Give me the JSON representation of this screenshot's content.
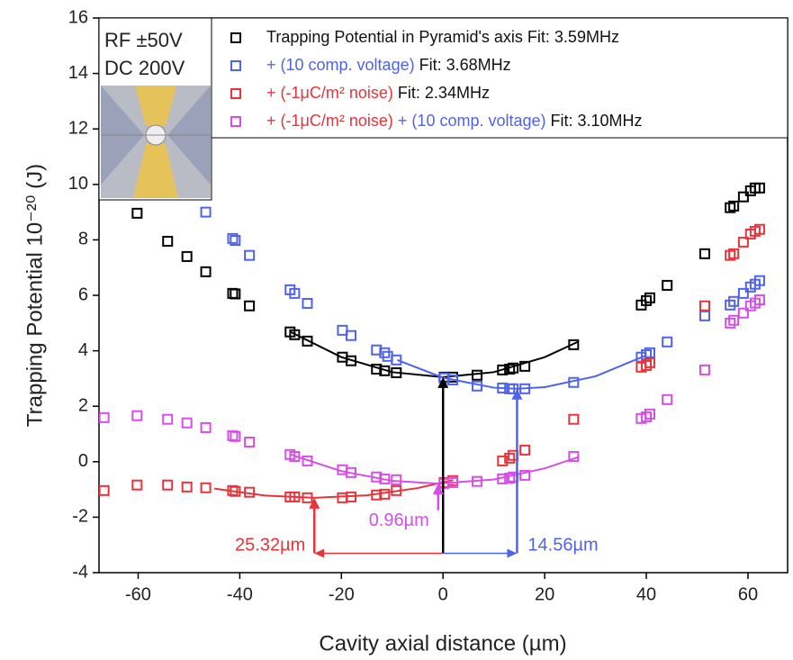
{
  "chart_data": {
    "type": "scatter",
    "xlabel": "Cavity axial distance (µm)",
    "ylabel": "Trapping Potential 10⁻²⁰ (J)",
    "xlim": [
      -67.7,
      67.8
    ],
    "ylim": [
      -4,
      16
    ],
    "xticks": [
      -60,
      -40,
      -20,
      0,
      20,
      40,
      60
    ],
    "yticks": [
      -4,
      -2,
      0,
      2,
      4,
      6,
      8,
      10,
      12,
      14,
      16
    ],
    "inset_text": [
      "RF ±50V",
      "DC 200V"
    ],
    "series": [
      {
        "legend_label": [
          {
            "text": "Trapping Potential in Pyramid's axis",
            "color": "#111111"
          },
          {
            "text": "Fit: 3.59MHz",
            "color": "#111111"
          }
        ],
        "color": "#000000",
        "x": [
          -60.2,
          -54.2,
          -50.4,
          -46.7,
          -41.4,
          -40.9,
          -38.1,
          -30.1,
          -29.2,
          -26.7,
          -19.8,
          -18.1,
          -13.1,
          -11.5,
          -9.2,
          0.2,
          1.9,
          6.7,
          11.7,
          13.1,
          13.8,
          16.1,
          25.7,
          39.0,
          40.0,
          40.7,
          44.1,
          51.5,
          56.5,
          57.2,
          59.1,
          60.5,
          61.4,
          62.3
        ],
        "y": [
          8.96,
          7.95,
          7.4,
          6.85,
          6.07,
          6.05,
          5.62,
          4.68,
          4.58,
          4.35,
          3.77,
          3.64,
          3.34,
          3.28,
          3.21,
          3.05,
          3.05,
          3.12,
          3.31,
          3.34,
          3.38,
          3.44,
          4.22,
          5.65,
          5.81,
          5.91,
          6.36,
          7.5,
          9.16,
          9.22,
          9.55,
          9.77,
          9.87,
          9.87
        ],
        "fit_x": [
          -30,
          -20,
          -10,
          0,
          10,
          20,
          26.5
        ],
        "fit_y": [
          4.68,
          3.77,
          3.23,
          3.05,
          3.23,
          3.77,
          4.32
        ]
      },
      {
        "legend_label": [
          {
            "text": "+ (10 comp. voltage)",
            "color": "#4f63ea"
          },
          {
            "text": "Fit: 3.68MHz",
            "color": "#111111"
          }
        ],
        "color": "#4f63ea",
        "x": [
          -46.7,
          -41.4,
          -40.9,
          -38.1,
          -30.1,
          -29.2,
          -26.7,
          -19.8,
          -18.1,
          -13.1,
          -11.5,
          -10.9,
          -9.2,
          0.2,
          1.9,
          6.7,
          11.7,
          13.1,
          13.8,
          16.1,
          25.7,
          39.0,
          40.0,
          40.7,
          44.1,
          51.5,
          56.5,
          57.2,
          59.1,
          60.5,
          61.4,
          62.3
        ],
        "y": [
          9.0,
          8.05,
          7.98,
          7.44,
          6.2,
          6.07,
          5.71,
          4.74,
          4.55,
          4.03,
          3.93,
          3.8,
          3.67,
          3.02,
          2.95,
          2.73,
          2.66,
          2.63,
          2.63,
          2.63,
          2.86,
          3.77,
          3.86,
          3.93,
          4.32,
          5.26,
          5.65,
          5.78,
          6.07,
          6.3,
          6.4,
          6.53
        ],
        "fit_x": [
          -9,
          0,
          10,
          14.56,
          20,
          30,
          40
        ],
        "fit_y": [
          3.67,
          3.03,
          2.67,
          2.63,
          2.69,
          3.08,
          3.84
        ]
      },
      {
        "legend_label": [
          {
            "text": "+ (-1μC/m² noise)",
            "color": "#e8333a"
          },
          {
            "text": "Fit: 2.34MHz",
            "color": "#111111"
          }
        ],
        "color": "#e8333a",
        "x": [
          -66.7,
          -60.2,
          -54.2,
          -50.4,
          -46.7,
          -41.4,
          -40.9,
          -38.1,
          -30.1,
          -29.2,
          -26.7,
          -19.8,
          -18.1,
          -13.1,
          -11.5,
          -9.2,
          0.2,
          1.9,
          11.7,
          13.1,
          13.8,
          16.1,
          25.7,
          39.0,
          40.0,
          40.7,
          51.5,
          56.5,
          57.2,
          59.1,
          60.5,
          61.4,
          62.3
        ],
        "y": [
          -1.04,
          -0.84,
          -0.84,
          -0.91,
          -0.94,
          -1.04,
          -1.07,
          -1.1,
          -1.27,
          -1.27,
          -1.3,
          -1.3,
          -1.27,
          -1.2,
          -1.17,
          -1.04,
          -0.75,
          -0.68,
          0.03,
          0.13,
          0.23,
          0.42,
          1.53,
          3.41,
          3.47,
          3.57,
          5.62,
          7.44,
          7.5,
          7.92,
          8.21,
          8.31,
          8.38
        ],
        "fit_x": [
          -45,
          -35,
          -25.32,
          -15,
          -5,
          2
        ],
        "fit_y": [
          -0.97,
          -1.22,
          -1.3,
          -1.21,
          -0.95,
          -0.66
        ]
      },
      {
        "legend_label": [
          {
            "text": "+ (-1μC/m² noise)",
            "color": "#e8333a"
          },
          {
            "text": "+ (10 comp. voltage)",
            "color": "#4f63ea"
          },
          {
            "text": "Fit: 3.10MHz",
            "color": "#111111"
          }
        ],
        "color": "#d64ee6",
        "x": [
          -66.7,
          -60.2,
          -54.2,
          -50.4,
          -46.7,
          -41.4,
          -40.9,
          -38.1,
          -30.1,
          -29.2,
          -26.7,
          -19.8,
          -18.1,
          -13.1,
          -11.5,
          -9.2,
          0.2,
          1.9,
          6.7,
          11.7,
          13.1,
          13.8,
          16.1,
          25.7,
          39.0,
          40.0,
          40.7,
          44.1,
          51.5,
          56.5,
          57.2,
          59.1,
          60.5,
          61.4,
          62.3
        ],
        "y": [
          1.59,
          1.66,
          1.53,
          1.4,
          1.23,
          0.94,
          0.91,
          0.71,
          0.26,
          0.19,
          0.03,
          -0.29,
          -0.39,
          -0.55,
          -0.62,
          -0.65,
          -0.78,
          -0.75,
          -0.71,
          -0.62,
          -0.59,
          -0.55,
          -0.49,
          0.19,
          1.56,
          1.62,
          1.72,
          2.24,
          3.31,
          5.0,
          5.1,
          5.36,
          5.62,
          5.72,
          5.84
        ],
        "fit_x": [
          -30,
          -20,
          -10,
          -0.96,
          10,
          20,
          26.5
        ],
        "fit_y": [
          0.26,
          -0.34,
          -0.69,
          -0.79,
          -0.64,
          -0.24,
          0.16
        ]
      }
    ],
    "arrows": [
      {
        "x": 0,
        "y_from": -3.3,
        "y_to": 3.05,
        "color": "#000000"
      },
      {
        "x": 14.56,
        "y_from": -3.3,
        "y_to": 2.63,
        "color": "#4f63ea",
        "label": "14.56µm"
      },
      {
        "x": -25.32,
        "y_from": -3.3,
        "y_to": -1.3,
        "color": "#e8333a",
        "label": "25.32µm"
      },
      {
        "x": -0.96,
        "y_from": -1.75,
        "y_to": -0.79,
        "color": "#d64ee6",
        "label": "0.96µm"
      }
    ]
  }
}
